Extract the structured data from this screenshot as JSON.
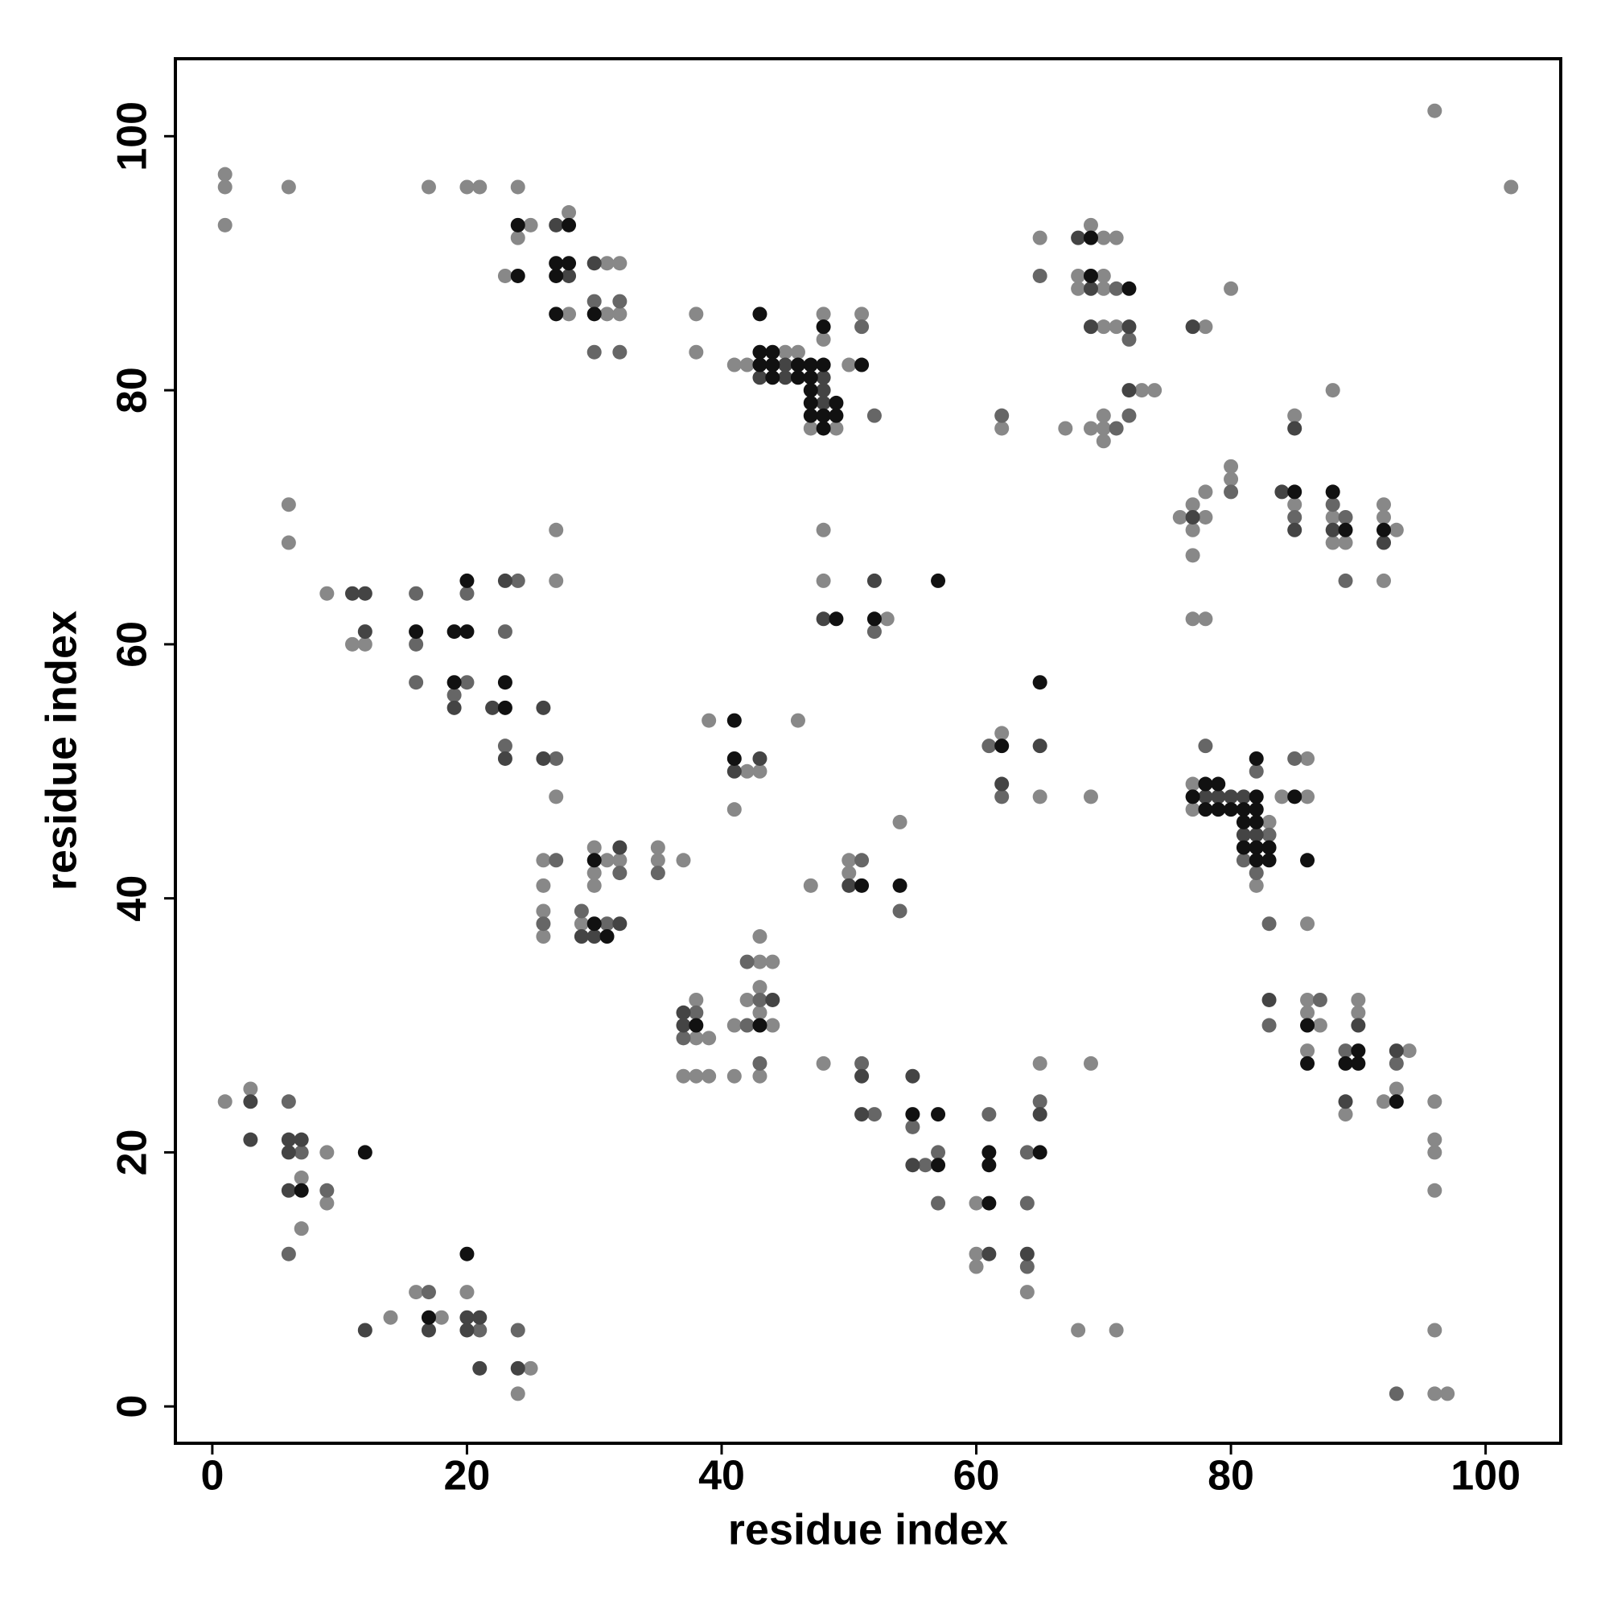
{
  "chart_data": {
    "type": "scatter",
    "x_label": "residue index",
    "y_label": "residue index",
    "xlim": [
      -2.9,
      105.9
    ],
    "ylim": [
      -2.9,
      106.1
    ],
    "xticks": [
      0,
      20,
      40,
      60,
      80,
      100
    ],
    "yticks": [
      0,
      20,
      40,
      60,
      80,
      100
    ],
    "grid": false,
    "series": [
      {
        "color": "#888888",
        "x": [
          1,
          1,
          1,
          6,
          17,
          20,
          21,
          24,
          25,
          24,
          23,
          28,
          28,
          31,
          32,
          31,
          32,
          38,
          38,
          41,
          42,
          45,
          46,
          47,
          49,
          48,
          48,
          50,
          51,
          62,
          65,
          67,
          69,
          70,
          71,
          68,
          70,
          68,
          70,
          70,
          71,
          73,
          74,
          69,
          70,
          70,
          70,
          78,
          80,
          76,
          77,
          77,
          78,
          78,
          77,
          77,
          78,
          80,
          80,
          88,
          85,
          85,
          88,
          88,
          89,
          92,
          92,
          93,
          92,
          96,
          102,
          6,
          6,
          9,
          11,
          12,
          27,
          27,
          27,
          48,
          48,
          53,
          39,
          42,
          43,
          46,
          41,
          26,
          26,
          26,
          26,
          29,
          30,
          30,
          30,
          31,
          32,
          35,
          35,
          37,
          47,
          50,
          50,
          54,
          62,
          65,
          69,
          77,
          77,
          82,
          83,
          84,
          86,
          86,
          86,
          38,
          38,
          39,
          37,
          38,
          39,
          41,
          41,
          42,
          43,
          43,
          43,
          43,
          43,
          44,
          44,
          48,
          60,
          60,
          60,
          65,
          64,
          69,
          68,
          71,
          86,
          86,
          86,
          87,
          89,
          90,
          90,
          92,
          93,
          94,
          96,
          96,
          96,
          96,
          96,
          96,
          97,
          1,
          3,
          7,
          9,
          9,
          7,
          14,
          16,
          18,
          20,
          25,
          24
        ],
        "values": [
          97,
          96,
          93,
          96,
          96,
          96,
          96,
          96,
          93,
          92,
          89,
          94,
          86,
          90,
          90,
          86,
          86,
          86,
          83,
          82,
          82,
          83,
          83,
          77,
          77,
          86,
          84,
          82,
          86,
          77,
          92,
          77,
          93,
          92,
          92,
          89,
          89,
          88,
          88,
          85,
          85,
          80,
          80,
          77,
          77,
          78,
          76,
          85,
          88,
          70,
          71,
          69,
          72,
          70,
          67,
          62,
          62,
          74,
          73,
          80,
          71,
          78,
          70,
          68,
          68,
          71,
          70,
          69,
          65,
          102,
          96,
          71,
          68,
          64,
          60,
          60,
          48,
          69,
          65,
          69,
          65,
          62,
          54,
          50,
          50,
          54,
          47,
          43,
          41,
          39,
          37,
          38,
          44,
          42,
          41,
          43,
          43,
          44,
          43,
          43,
          41,
          43,
          42,
          46,
          53,
          48,
          48,
          49,
          47,
          41,
          46,
          48,
          51,
          48,
          38,
          32,
          29,
          29,
          26,
          26,
          26,
          30,
          26,
          32,
          37,
          35,
          33,
          31,
          26,
          35,
          30,
          27,
          16,
          12,
          11,
          27,
          9,
          27,
          6,
          6,
          32,
          31,
          28,
          30,
          23,
          32,
          31,
          24,
          25,
          28,
          24,
          21,
          20,
          17,
          6,
          1,
          1,
          24,
          25,
          18,
          20,
          16,
          14,
          7,
          9,
          7,
          9,
          3,
          1
        ]
      },
      {
        "color": "#666666",
        "x": [
          30,
          32,
          30,
          32,
          51,
          52,
          62,
          65,
          71,
          72,
          72,
          71,
          80,
          85,
          88,
          89,
          89,
          16,
          16,
          16,
          20,
          20,
          19,
          24,
          23,
          23,
          27,
          52,
          27,
          26,
          29,
          31,
          32,
          35,
          51,
          54,
          61,
          62,
          78,
          81,
          82,
          82,
          83,
          83,
          85,
          37,
          38,
          42,
          42,
          43,
          43,
          51,
          52,
          55,
          56,
          57,
          57,
          61,
          64,
          65,
          64,
          64,
          83,
          87,
          89,
          93,
          93,
          6,
          7,
          9,
          6,
          17,
          21,
          24
        ],
        "values": [
          87,
          87,
          83,
          83,
          85,
          78,
          78,
          89,
          88,
          84,
          78,
          77,
          72,
          70,
          71,
          70,
          65,
          64,
          60,
          57,
          64,
          57,
          56,
          65,
          61,
          52,
          51,
          61,
          43,
          38,
          39,
          38,
          42,
          42,
          43,
          39,
          52,
          48,
          52,
          43,
          50,
          42,
          45,
          38,
          51,
          29,
          31,
          35,
          30,
          32,
          27,
          27,
          23,
          22,
          19,
          20,
          16,
          23,
          20,
          24,
          16,
          11,
          30,
          32,
          28,
          27,
          1,
          24,
          20,
          17,
          12,
          9,
          6,
          6
        ]
      },
      {
        "color": "#444444",
        "x": [
          27,
          28,
          30,
          45,
          43,
          45,
          48,
          48,
          48,
          77,
          68,
          69,
          69,
          72,
          72,
          77,
          84,
          85,
          85,
          88,
          92,
          11,
          12,
          12,
          19,
          23,
          22,
          23,
          26,
          26,
          48,
          52,
          41,
          43,
          29,
          30,
          32,
          32,
          50,
          62,
          65,
          78,
          79,
          80,
          81,
          81,
          82,
          37,
          37,
          44,
          51,
          51,
          55,
          55,
          61,
          65,
          64,
          83,
          89,
          90,
          93,
          3,
          3,
          6,
          7,
          6,
          6,
          17,
          20,
          21,
          20,
          21,
          24,
          12
        ],
        "values": [
          93,
          89,
          90,
          82,
          81,
          81,
          81,
          80,
          79,
          85,
          92,
          88,
          85,
          85,
          80,
          70,
          72,
          69,
          77,
          69,
          68,
          64,
          64,
          61,
          55,
          65,
          55,
          51,
          55,
          51,
          62,
          65,
          50,
          51,
          37,
          37,
          38,
          44,
          41,
          49,
          52,
          48,
          48,
          48,
          48,
          45,
          45,
          31,
          30,
          32,
          26,
          23,
          26,
          19,
          12,
          23,
          12,
          32,
          24,
          30,
          28,
          24,
          21,
          21,
          21,
          20,
          17,
          6,
          7,
          7,
          6,
          3,
          3,
          6
        ]
      },
      {
        "color": "#111111",
        "x": [
          24,
          24,
          28,
          27,
          28,
          27,
          27,
          30,
          43,
          43,
          44,
          43,
          44,
          46,
          47,
          48,
          44,
          46,
          47,
          47,
          47,
          49,
          47,
          48,
          49,
          48,
          48,
          51,
          69,
          69,
          72,
          85,
          88,
          89,
          92,
          16,
          19,
          20,
          20,
          19,
          23,
          23,
          49,
          52,
          57,
          41,
          41,
          30,
          31,
          30,
          51,
          54,
          62,
          65,
          77,
          78,
          78,
          79,
          79,
          80,
          81,
          81,
          81,
          82,
          82,
          82,
          82,
          82,
          82,
          83,
          83,
          85,
          86,
          38,
          43,
          55,
          57,
          57,
          61,
          61,
          61,
          65,
          86,
          86,
          89,
          90,
          90,
          93,
          7,
          12,
          17,
          20
        ],
        "values": [
          93,
          89,
          93,
          90,
          90,
          89,
          86,
          86,
          86,
          83,
          83,
          82,
          82,
          82,
          82,
          82,
          81,
          81,
          81,
          80,
          79,
          79,
          78,
          78,
          78,
          77,
          85,
          82,
          92,
          89,
          88,
          72,
          72,
          69,
          69,
          61,
          61,
          61,
          65,
          57,
          55,
          57,
          62,
          62,
          65,
          54,
          51,
          38,
          37,
          43,
          41,
          41,
          52,
          57,
          48,
          49,
          47,
          49,
          47,
          47,
          47,
          46,
          44,
          51,
          48,
          47,
          46,
          44,
          43,
          44,
          43,
          48,
          43,
          30,
          30,
          23,
          23,
          19,
          20,
          19,
          16,
          20,
          30,
          27,
          27,
          28,
          27,
          24,
          17,
          20,
          7,
          12
        ]
      }
    ]
  }
}
